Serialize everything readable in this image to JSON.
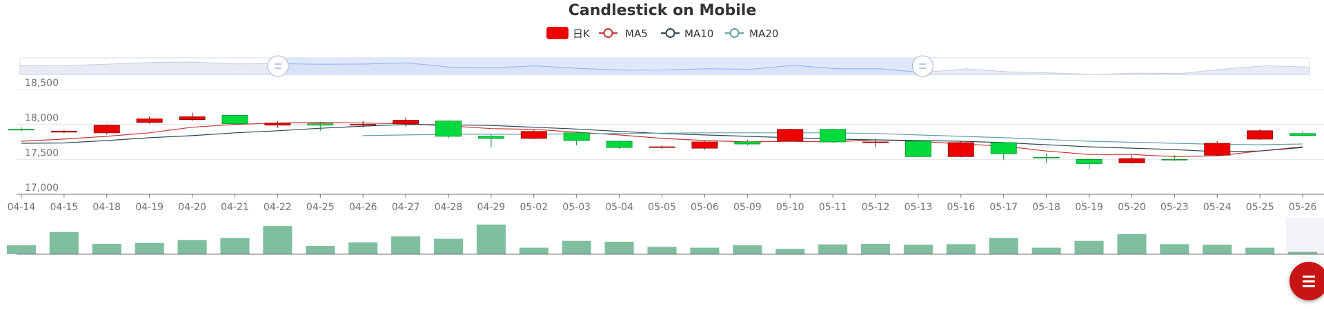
{
  "colors": {
    "up": "#ec0000",
    "up_border": "#8a0000",
    "down": "#00da3c",
    "down_border": "#008f28",
    "ma5": "#c23531",
    "ma10": "#2f4554",
    "ma20": "#61a0a8",
    "volume": "#7fbe9e",
    "axis": "#6e7079",
    "grid": "#e0e6f1",
    "slider_fill": "#d3e0f9",
    "fab": "#c71515"
  },
  "chart_data": {
    "type": "candlestick",
    "title": "Candlestick on Mobile",
    "legend": [
      "日K",
      "MA5",
      "MA10",
      "MA20"
    ],
    "legend_position": "top-center",
    "ylim": [
      17000,
      18500
    ],
    "yticks": [
      "18,500",
      "18,000",
      "17,500",
      "17,000"
    ],
    "grid": true,
    "dataZoom": {
      "start": 0.2,
      "end": 0.7
    },
    "dates": [
      "04-14",
      "04-15",
      "04-18",
      "04-19",
      "04-20",
      "04-21",
      "04-22",
      "04-25",
      "04-26",
      "04-27",
      "04-28",
      "04-29",
      "05-02",
      "05-03",
      "05-04",
      "05-05",
      "05-06",
      "05-09",
      "05-10",
      "05-11",
      "05-12",
      "05-13",
      "05-16",
      "05-17",
      "05-18",
      "05-19",
      "05-20",
      "05-23",
      "05-24",
      "05-25",
      "05-26"
    ],
    "ohlc": [
      [
        17930,
        17920,
        17905,
        17960
      ],
      [
        17890,
        17905,
        17875,
        17925
      ],
      [
        17880,
        17990,
        17855,
        18000
      ],
      [
        18030,
        18080,
        18010,
        18110
      ],
      [
        18070,
        18110,
        18050,
        18170
      ],
      [
        18130,
        18010,
        17990,
        18140
      ],
      [
        17990,
        18020,
        17950,
        18050
      ],
      [
        18010,
        17990,
        17910,
        18030
      ],
      [
        18000,
        18000,
        17960,
        18050
      ],
      [
        18010,
        18060,
        17970,
        18100
      ],
      [
        18050,
        17830,
        17800,
        18060
      ],
      [
        17830,
        17800,
        17670,
        17860
      ],
      [
        17800,
        17900,
        17790,
        17920
      ],
      [
        17880,
        17770,
        17700,
        17900
      ],
      [
        17760,
        17670,
        17650,
        17770
      ],
      [
        17680,
        17680,
        17650,
        17700
      ],
      [
        17660,
        17750,
        17640,
        17760
      ],
      [
        17750,
        17720,
        17700,
        17780
      ],
      [
        17760,
        17930,
        17750,
        17940
      ],
      [
        17930,
        17750,
        17740,
        17940
      ],
      [
        17740,
        17750,
        17680,
        17790
      ],
      [
        17760,
        17540,
        17530,
        17770
      ],
      [
        17540,
        17740,
        17530,
        17760
      ],
      [
        17740,
        17580,
        17490,
        17750
      ],
      [
        17530,
        17520,
        17450,
        17580
      ],
      [
        17500,
        17440,
        17360,
        17520
      ],
      [
        17450,
        17510,
        17440,
        17560
      ],
      [
        17500,
        17490,
        17480,
        17560
      ],
      [
        17560,
        17730,
        17550,
        17760
      ],
      [
        17790,
        17910,
        17780,
        17930
      ],
      [
        17870,
        17840,
        17840,
        17900
      ]
    ],
    "ma5": [
      17760,
      17790,
      17830,
      17880,
      17960,
      18000,
      18020,
      18030,
      18020,
      18010,
      17980,
      17940,
      17930,
      17890,
      17850,
      17800,
      17770,
      17750,
      17760,
      17750,
      17780,
      17760,
      17720,
      17690,
      17620,
      17570,
      17570,
      17540,
      17550,
      17620,
      17680
    ],
    "ma10": [
      17730,
      17735,
      17770,
      17810,
      17840,
      17880,
      17910,
      17945,
      17975,
      18000,
      17995,
      17985,
      17960,
      17935,
      17900,
      17870,
      17850,
      17830,
      17810,
      17790,
      17780,
      17770,
      17760,
      17740,
      17710,
      17680,
      17660,
      17640,
      17610,
      17620,
      17670
    ],
    "ma20": [
      null,
      null,
      null,
      null,
      null,
      null,
      null,
      null,
      17840,
      17850,
      17860,
      17860,
      17860,
      17865,
      17870,
      17875,
      17880,
      17880,
      17880,
      17880,
      17870,
      17850,
      17830,
      17810,
      17785,
      17760,
      17745,
      17730,
      17715,
      17710,
      17720
    ],
    "volume": [
      30,
      75,
      35,
      38,
      48,
      55,
      95,
      28,
      40,
      60,
      52,
      100,
      22,
      45,
      42,
      25,
      22,
      30,
      18,
      33,
      35,
      32,
      34,
      55,
      22,
      45,
      68,
      34,
      32,
      22,
      8
    ]
  }
}
